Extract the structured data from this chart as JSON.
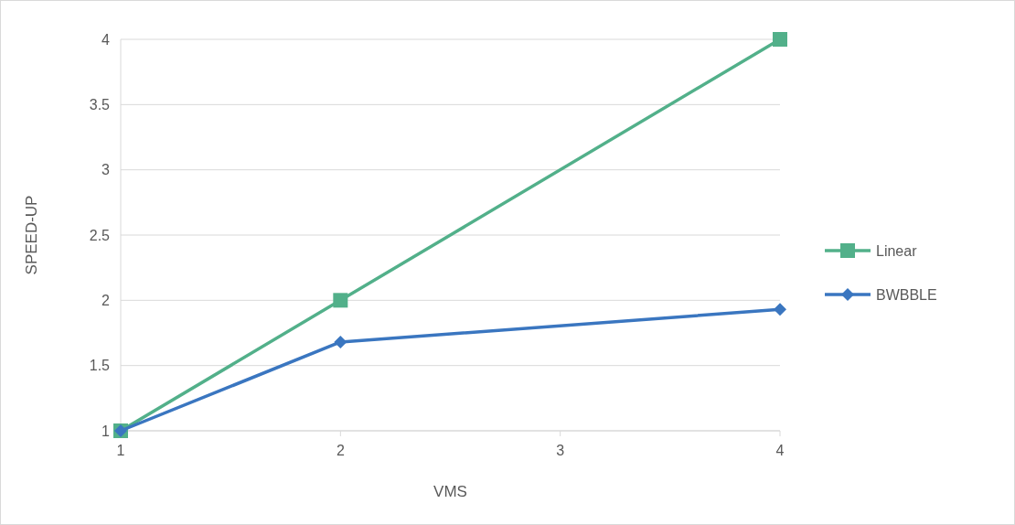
{
  "chart_data": {
    "type": "line",
    "xlabel": "VMS",
    "ylabel": "SPEED-UP",
    "x": [
      1,
      2,
      4
    ],
    "series": [
      {
        "name": "Linear",
        "color": "#52b08a",
        "values": [
          1,
          2,
          4
        ],
        "marker": "square"
      },
      {
        "name": "BWBBLE",
        "color": "#3a76c0",
        "values": [
          1,
          1.68,
          1.93
        ],
        "marker": "diamond"
      }
    ],
    "xlim": [
      1,
      4
    ],
    "xticks": [
      1,
      2,
      3,
      4
    ],
    "ylim": [
      1,
      4
    ],
    "yticks": [
      1,
      1.5,
      2,
      2.5,
      3,
      3.5,
      4
    ],
    "grid": "y",
    "legend": "right",
    "line_style": "solid"
  }
}
